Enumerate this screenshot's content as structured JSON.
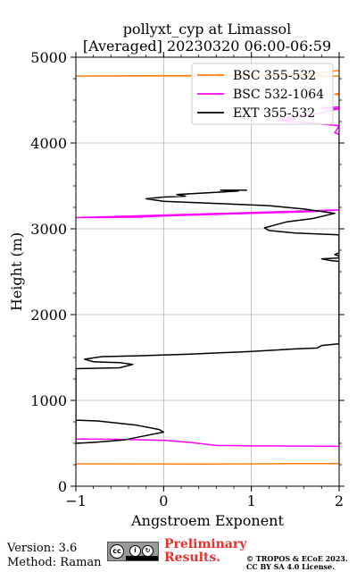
{
  "chart_data": {
    "type": "line",
    "title": "pollyxt_cyp at Limassol",
    "subtitle": "[Averaged] 20230320 06:00-06:59",
    "xlabel": "Angstroem Exponent",
    "ylabel": "Height (m)",
    "xlim": [
      -1,
      2
    ],
    "ylim": [
      0,
      5000
    ],
    "xticks": [
      "−1",
      "0",
      "1",
      "2"
    ],
    "yticks": [
      "0",
      "1000",
      "2000",
      "3000",
      "4000",
      "5000"
    ],
    "grid": true,
    "legend_position": "upper-right",
    "series": [
      {
        "name": "BSC 355-532",
        "color": "#ff7f0e",
        "points": [
          [
            -1.0,
            260
          ],
          [
            0.5,
            258
          ],
          [
            1.5,
            262
          ],
          [
            2.0,
            264
          ],
          [
            2.0,
            4560
          ],
          [
            1.95,
            4570
          ],
          [
            2.0,
            4580
          ],
          [
            2.0,
            4780
          ],
          [
            0.0,
            4785
          ],
          [
            -1.0,
            4780
          ],
          [
            0.5,
            4782
          ],
          [
            1.5,
            4790
          ],
          [
            2.0,
            4845
          ]
        ]
      },
      {
        "name": "BSC 532-1064",
        "color": "#ff00ff",
        "points": [
          [
            -1.0,
            550
          ],
          [
            -0.6,
            548
          ],
          [
            0.0,
            535
          ],
          [
            0.3,
            510
          ],
          [
            0.6,
            475
          ],
          [
            1.0,
            470
          ],
          [
            1.6,
            468
          ],
          [
            2.0,
            465
          ],
          [
            2.0,
            3220
          ],
          [
            1.7,
            3200
          ],
          [
            1.0,
            3180
          ],
          [
            0.0,
            3150
          ],
          [
            -0.3,
            3135
          ],
          [
            -1.0,
            3130
          ],
          [
            -1.0,
            3130
          ],
          [
            2.0,
            3220
          ],
          [
            2.0,
            4100
          ],
          [
            1.95,
            4120
          ],
          [
            2.0,
            4200
          ],
          [
            1.6,
            4240
          ],
          [
            1.3,
            4260
          ],
          [
            1.5,
            4280
          ],
          [
            1.4,
            4300
          ],
          [
            1.7,
            4330
          ],
          [
            2.0,
            4400
          ],
          [
            1.8,
            4410
          ],
          [
            2.0,
            4420
          ]
        ]
      },
      {
        "name": "EXT 355-532",
        "color": "#000000",
        "points": [
          [
            -1.0,
            770
          ],
          [
            -0.75,
            760
          ],
          [
            -0.3,
            710
          ],
          [
            -0.05,
            660
          ],
          [
            0.0,
            630
          ],
          [
            -0.25,
            580
          ],
          [
            -0.45,
            540
          ],
          [
            -0.8,
            510
          ],
          [
            -1.0,
            500
          ],
          [
            -1.0,
            1370
          ],
          [
            -0.5,
            1380
          ],
          [
            -0.35,
            1420
          ],
          [
            -0.5,
            1440
          ],
          [
            -0.8,
            1450
          ],
          [
            -0.9,
            1480
          ],
          [
            -0.7,
            1510
          ],
          [
            -0.3,
            1520
          ],
          [
            0.3,
            1540
          ],
          [
            1.0,
            1570
          ],
          [
            1.5,
            1600
          ],
          [
            1.75,
            1610
          ],
          [
            1.8,
            1640
          ],
          [
            2.0,
            1660
          ],
          [
            2.0,
            2620
          ],
          [
            1.9,
            2630
          ],
          [
            1.8,
            2650
          ],
          [
            2.0,
            2660
          ],
          [
            2.0,
            2680
          ],
          [
            1.95,
            2700
          ],
          [
            2.0,
            2720
          ],
          [
            2.0,
            2930
          ],
          [
            1.5,
            2950
          ],
          [
            1.2,
            2980
          ],
          [
            1.15,
            3010
          ],
          [
            1.25,
            3040
          ],
          [
            1.4,
            3080
          ],
          [
            1.7,
            3120
          ],
          [
            1.95,
            3180
          ],
          [
            1.6,
            3230
          ],
          [
            1.2,
            3270
          ],
          [
            0.5,
            3300
          ],
          [
            0.0,
            3320
          ],
          [
            -0.2,
            3350
          ],
          [
            0.0,
            3370
          ],
          [
            0.25,
            3380
          ],
          [
            0.15,
            3400
          ],
          [
            0.5,
            3420
          ],
          [
            0.85,
            3440
          ],
          [
            0.65,
            3450
          ],
          [
            0.95,
            3450
          ]
        ]
      }
    ]
  },
  "footer": {
    "version": "Version: 3.6",
    "method": "Method: Raman",
    "preliminary_line1": "Preliminary",
    "preliminary_line2": "Results.",
    "copyright_line1": "© TROPOS & ECoE 2023.",
    "copyright_line2": "CC BY SA 4.0 License.",
    "license_badge": "cc by sa"
  }
}
